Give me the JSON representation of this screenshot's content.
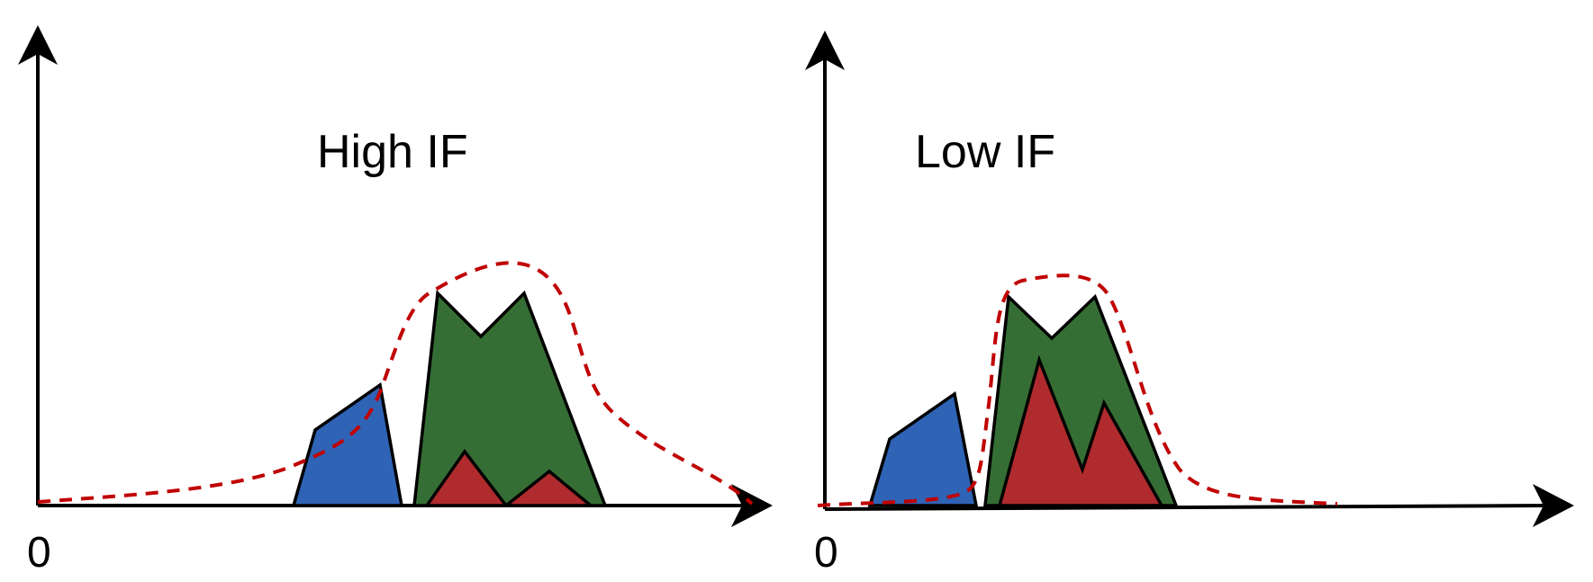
{
  "colors": {
    "blue": "#2f63b5",
    "green": "#356e35",
    "red": "#b02b2e",
    "envelope": "#c00000",
    "axis": "#000000"
  },
  "panels": [
    {
      "title": "High IF",
      "origin_label": "0"
    },
    {
      "title": "Low IF",
      "origin_label": "0"
    }
  ]
}
